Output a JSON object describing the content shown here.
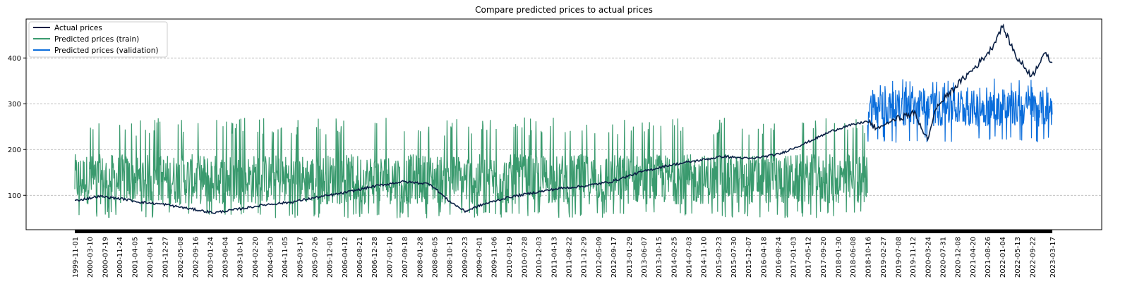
{
  "chart_data": {
    "type": "line",
    "title": "Compare predicted prices to actual prices",
    "xlabel": "",
    "ylabel": "",
    "ylim": [
      25,
      485
    ],
    "yticks": [
      100,
      200,
      300,
      400
    ],
    "grid": "horizontal dashed",
    "legend_position": "top-left",
    "x_start": "1999-11-01",
    "x_end": "2023-03-17",
    "split_date": "2018-10-16",
    "x_tick_labels": [
      "1999-11-01",
      "2000-03-10",
      "2000-07-19",
      "2000-11-24",
      "2001-04-05",
      "2001-08-14",
      "2001-12-27",
      "2002-05-08",
      "2002-09-16",
      "2003-01-24",
      "2003-06-04",
      "2003-10-10",
      "2004-02-20",
      "2004-06-30",
      "2004-11-05",
      "2005-03-17",
      "2005-07-26",
      "2005-12-01",
      "2006-04-12",
      "2006-08-21",
      "2006-12-28",
      "2007-05-10",
      "2007-09-18",
      "2008-01-28",
      "2008-06-05",
      "2008-10-13",
      "2009-02-23",
      "2009-07-01",
      "2009-11-06",
      "2010-03-19",
      "2010-07-28",
      "2010-12-03",
      "2011-04-13",
      "2011-08-22",
      "2011-12-29",
      "2012-05-09",
      "2012-09-17",
      "2013-01-29",
      "2013-06-07",
      "2013-10-15",
      "2014-02-25",
      "2014-07-03",
      "2014-11-10",
      "2015-03-23",
      "2015-07-30",
      "2015-12-07",
      "2016-04-18",
      "2016-08-24",
      "2017-01-03",
      "2017-05-12",
      "2017-09-20",
      "2018-01-30",
      "2018-06-08",
      "2018-10-16",
      "2019-02-27",
      "2019-07-08",
      "2019-11-12",
      "2020-03-24",
      "2020-07-31",
      "2020-12-08",
      "2021-04-20",
      "2021-08-26",
      "2022-01-04",
      "2022-05-13",
      "2022-09-22",
      "2023-03-17"
    ],
    "series": [
      {
        "name": "Actual prices",
        "color": "#0a1f44",
        "x": [
          "1999-11-01",
          "2000-06-01",
          "2001-01-01",
          "2001-06-01",
          "2002-01-01",
          "2002-07-01",
          "2003-03-01",
          "2003-10-01",
          "2004-06-01",
          "2005-01-01",
          "2005-08-01",
          "2006-04-01",
          "2007-01-01",
          "2007-09-01",
          "2008-05-01",
          "2008-10-01",
          "2009-03-01",
          "2009-08-01",
          "2010-03-01",
          "2010-10-01",
          "2011-06-01",
          "2012-01-01",
          "2012-09-01",
          "2013-05-01",
          "2014-01-01",
          "2014-09-01",
          "2015-05-01",
          "2016-01-01",
          "2016-09-01",
          "2017-05-01",
          "2017-12-01",
          "2018-04-01",
          "2018-10-16",
          "2019-01-01",
          "2019-06-01",
          "2019-12-01",
          "2020-03-24",
          "2020-06-01",
          "2020-12-01",
          "2021-06-01",
          "2021-10-01",
          "2022-01-04",
          "2022-05-13",
          "2022-09-22",
          "2023-01-01",
          "2023-03-17"
        ],
        "values": [
          88,
          98,
          92,
          85,
          80,
          72,
          62,
          70,
          80,
          85,
          95,
          105,
          120,
          130,
          125,
          90,
          65,
          80,
          95,
          105,
          115,
          120,
          130,
          150,
          165,
          175,
          185,
          180,
          190,
          215,
          240,
          250,
          262,
          245,
          265,
          280,
          220,
          290,
          340,
          385,
          420,
          470,
          400,
          360,
          410,
          390
        ]
      },
      {
        "name": "Predicted prices (train)",
        "color": "#3a9a6e",
        "x_range": [
          "1999-11-01",
          "2018-10-16"
        ],
        "low": 50,
        "typical_low": 80,
        "typical_high": 190,
        "high": 270
      },
      {
        "name": "Predicted prices (validation)",
        "color": "#0a6ddb",
        "x_range": [
          "2018-10-16",
          "2023-03-17"
        ],
        "low": 215,
        "typical_low": 250,
        "typical_high": 330,
        "high": 355
      }
    ]
  }
}
